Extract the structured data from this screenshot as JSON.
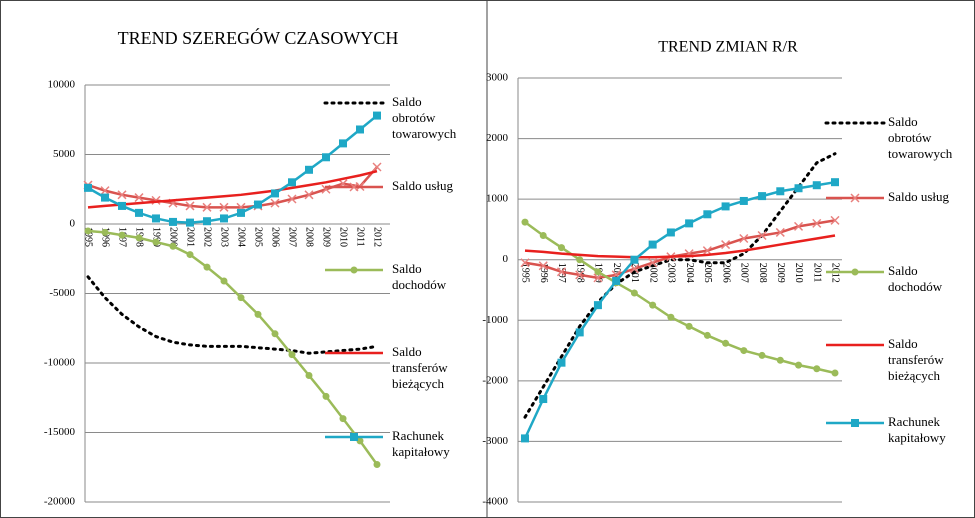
{
  "chart_data": [
    {
      "type": "line",
      "title": "TREND SZEREGÓW CZASOWYCH",
      "categories": [
        "1995",
        "1996",
        "1997",
        "1998",
        "1999",
        "2000",
        "2001",
        "2002",
        "2003",
        "2004",
        "2005",
        "2006",
        "2007",
        "2008",
        "2009",
        "2010",
        "2011",
        "2012"
      ],
      "ylim": [
        -20000,
        10000
      ],
      "yticks": [
        -20000,
        -15000,
        -10000,
        -5000,
        0,
        5000,
        10000
      ],
      "grid": true,
      "series": [
        {
          "name": "Saldo obrotów towarowych",
          "color": "#000000",
          "dash": "dotted",
          "marker": null,
          "values": [
            -3800,
            -5300,
            -6500,
            -7400,
            -8100,
            -8500,
            -8700,
            -8800,
            -8800,
            -8800,
            -8900,
            -9000,
            -9100,
            -9300,
            -9200,
            -9100,
            -9000,
            -8800
          ]
        },
        {
          "name": "Saldo usług",
          "color": "#d9534f",
          "marker": "x",
          "values": [
            2800,
            2400,
            2100,
            1900,
            1700,
            1500,
            1300,
            1200,
            1200,
            1200,
            1300,
            1500,
            1800,
            2100,
            2500,
            2900,
            2700,
            4100
          ]
        },
        {
          "name": "Saldo dochodów",
          "color": "#9bbb59",
          "marker": "circle",
          "values": [
            -500,
            -600,
            -800,
            -1000,
            -1300,
            -1600,
            -2200,
            -3100,
            -4100,
            -5300,
            -6500,
            -7900,
            -9400,
            -10900,
            -12400,
            -14000,
            -15600,
            -17300
          ]
        },
        {
          "name": "Saldo transferów bieżących",
          "color": "#e8201e",
          "marker": null,
          "values": [
            1200,
            1300,
            1400,
            1500,
            1600,
            1700,
            1800,
            1900,
            2000,
            2100,
            2250,
            2400,
            2600,
            2800,
            3000,
            3250,
            3500,
            3800
          ]
        },
        {
          "name": "Rachunek kapitałowy",
          "color": "#1fa8c6",
          "marker": "square",
          "values": [
            2600,
            1900,
            1300,
            800,
            400,
            150,
            100,
            200,
            400,
            800,
            1400,
            2200,
            3000,
            3900,
            4800,
            5800,
            6800,
            7800
          ]
        }
      ]
    },
    {
      "type": "line",
      "title": "TREND ZMIAN R/R",
      "categories": [
        "1995",
        "1996",
        "1997",
        "1998",
        "1999",
        "2000",
        "2001",
        "2002",
        "2003",
        "2004",
        "2005",
        "2006",
        "2007",
        "2008",
        "2009",
        "2010",
        "2011",
        "2012"
      ],
      "ylim": [
        -4000,
        3000
      ],
      "yticks": [
        -4000,
        -3000,
        -2000,
        -1000,
        0,
        1000,
        2000,
        3000
      ],
      "grid": true,
      "series": [
        {
          "name": "Saldo obrotów towarowych",
          "color": "#000000",
          "dash": "dotted",
          "marker": null,
          "values": [
            -2600,
            -2100,
            -1600,
            -1100,
            -700,
            -400,
            -200,
            -100,
            0,
            0,
            -50,
            -50,
            100,
            400,
            800,
            1200,
            1600,
            1750
          ]
        },
        {
          "name": "Saldo usług",
          "color": "#d9534f",
          "marker": "x",
          "values": [
            -50,
            -100,
            -200,
            -250,
            -300,
            -250,
            -150,
            -50,
            50,
            100,
            150,
            250,
            350,
            400,
            450,
            550,
            600,
            650
          ]
        },
        {
          "name": "Saldo dochodów",
          "color": "#9bbb59",
          "marker": "circle",
          "values": [
            620,
            400,
            200,
            0,
            -200,
            -380,
            -550,
            -750,
            -950,
            -1100,
            -1250,
            -1380,
            -1500,
            -1580,
            -1660,
            -1740,
            -1800,
            -1870
          ]
        },
        {
          "name": "Saldo transferów bieżących",
          "color": "#e8201e",
          "marker": null,
          "values": [
            150,
            130,
            100,
            80,
            60,
            50,
            40,
            40,
            50,
            60,
            80,
            110,
            150,
            200,
            250,
            300,
            350,
            400
          ]
        },
        {
          "name": "Rachunek kapitałowy",
          "color": "#1fa8c6",
          "marker": "square",
          "values": [
            -2950,
            -2300,
            -1700,
            -1200,
            -750,
            -350,
            0,
            250,
            450,
            600,
            750,
            880,
            970,
            1050,
            1130,
            1180,
            1230,
            1280
          ]
        }
      ]
    }
  ]
}
